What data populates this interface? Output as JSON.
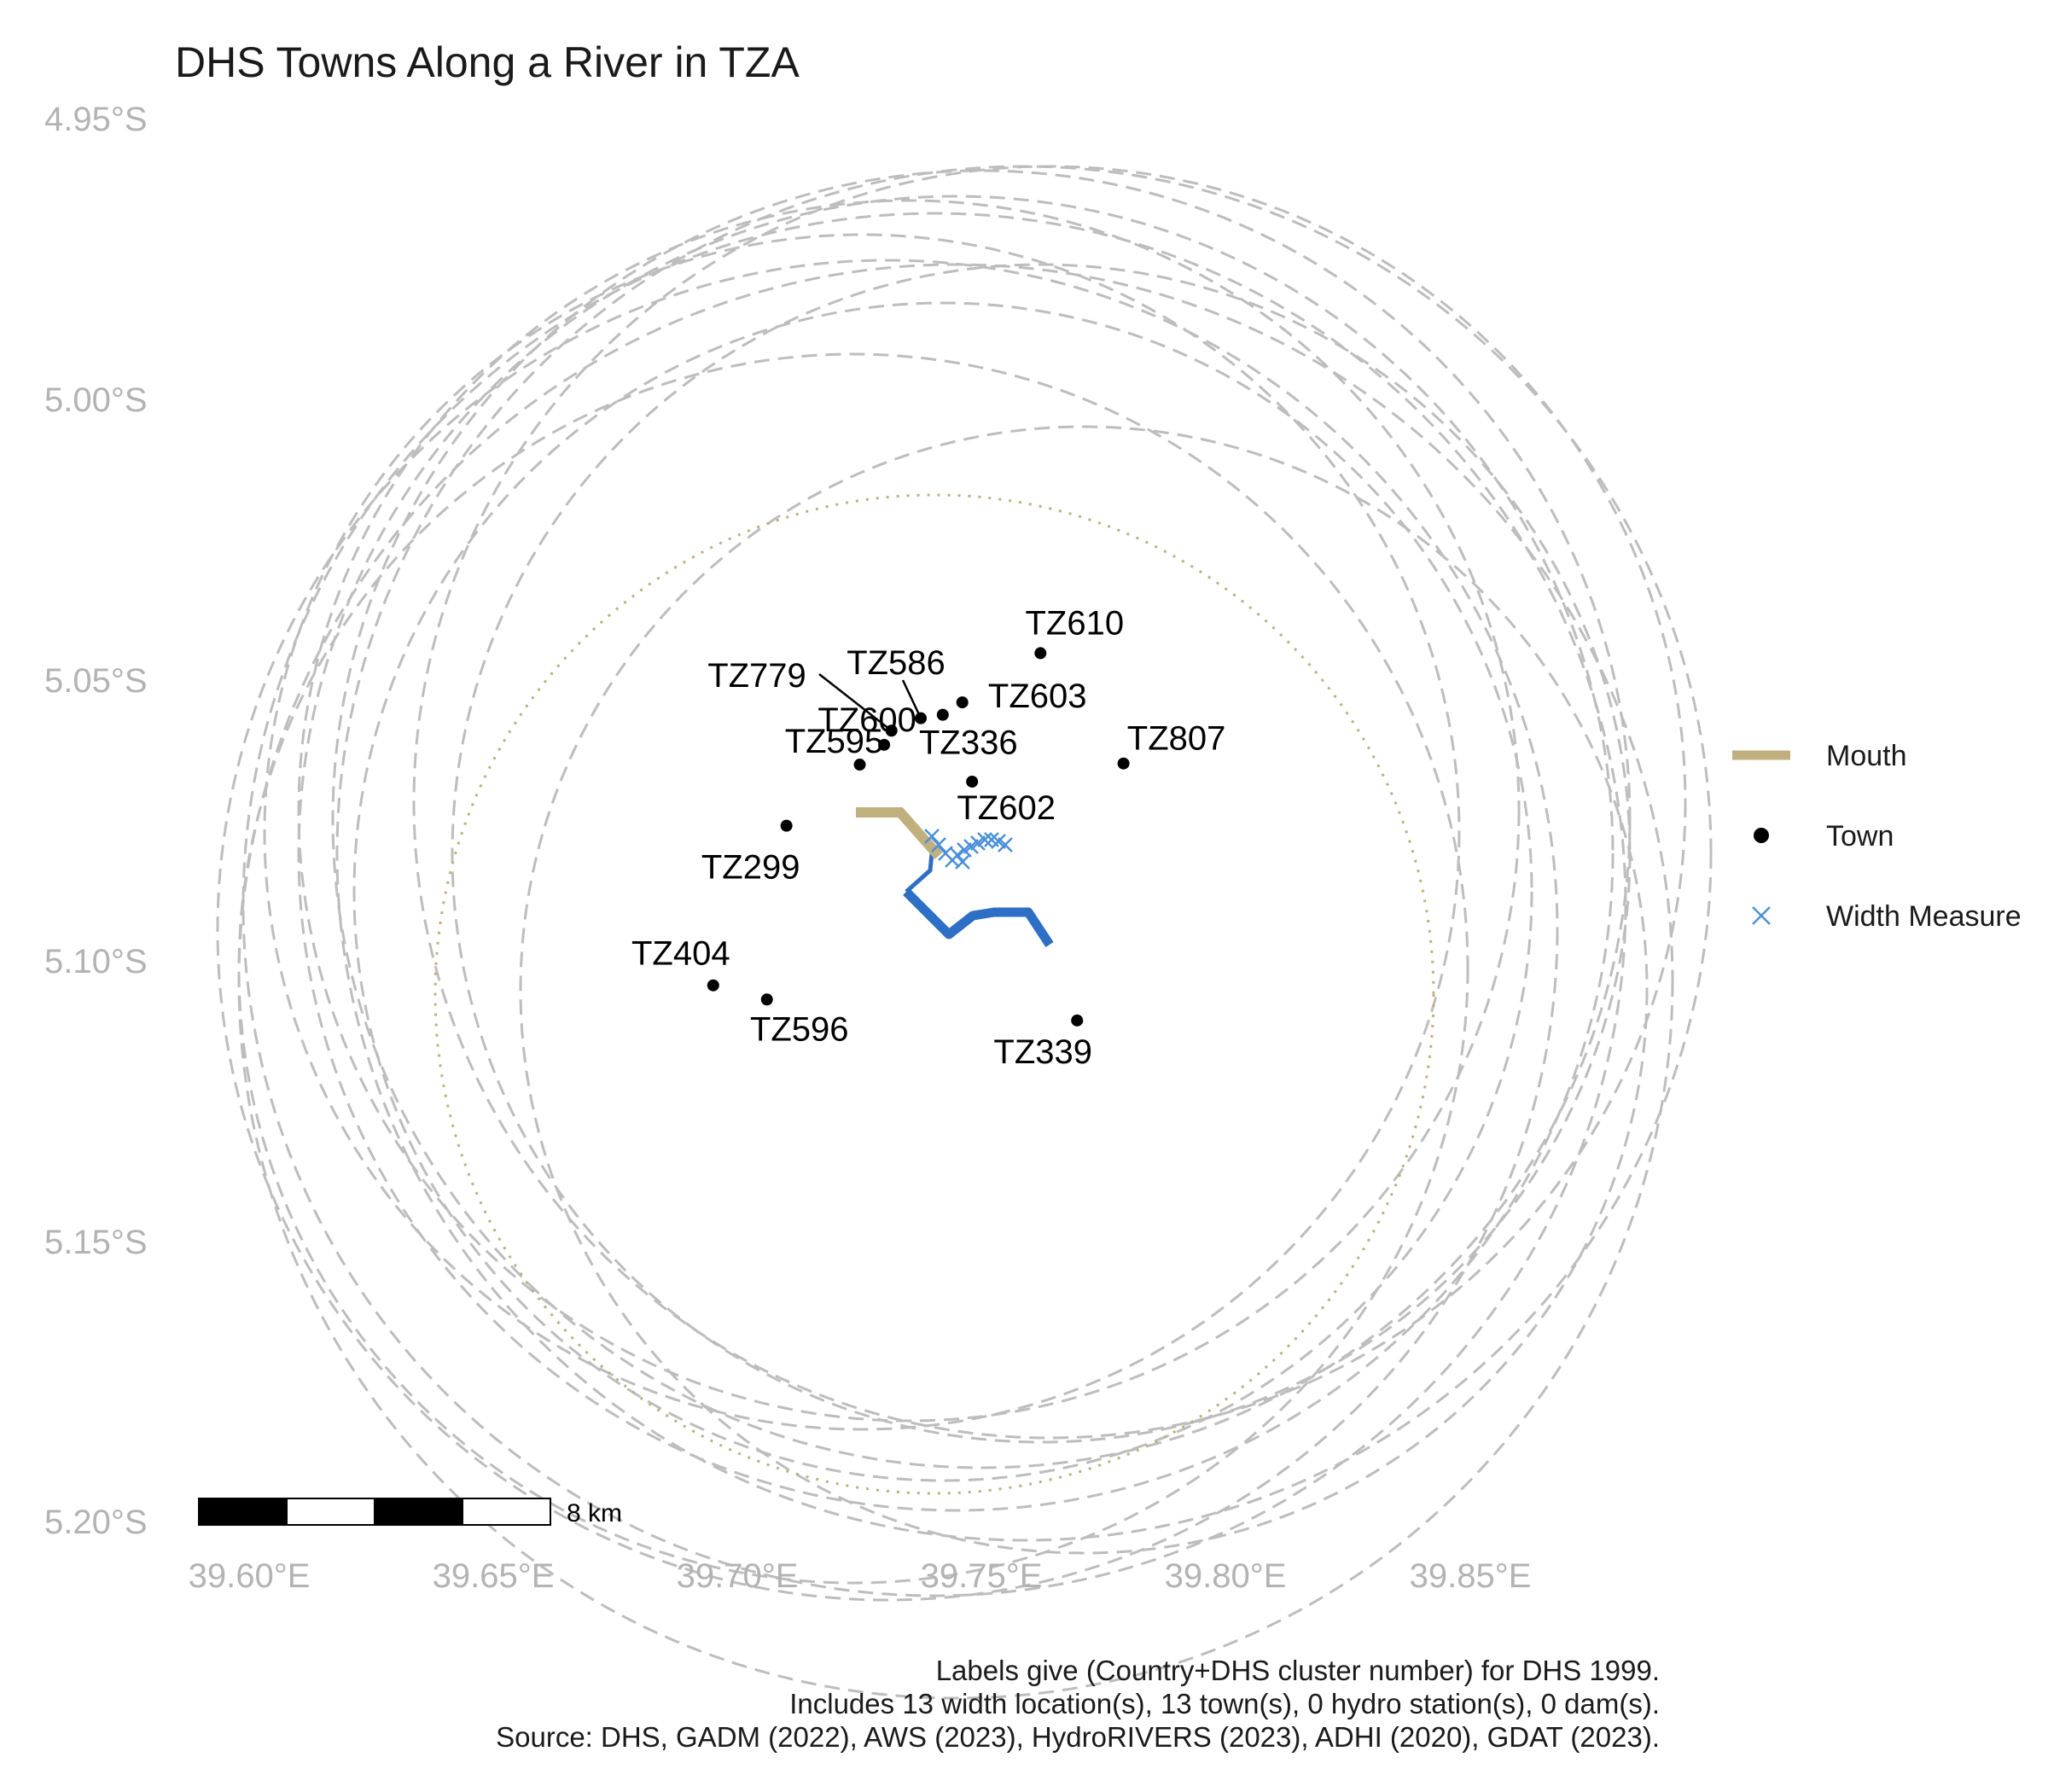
{
  "title": "DHS Towns Along a River in TZA",
  "axes": {
    "y_ticks": [
      "4.95°S",
      "5.00°S",
      "5.05°S",
      "5.10°S",
      "5.15°S",
      "5.20°S"
    ],
    "x_ticks": [
      "39.60°E",
      "39.65°E",
      "39.70°E",
      "39.75°E",
      "39.80°E",
      "39.85°E"
    ]
  },
  "legend": {
    "items": [
      {
        "label": "Mouth",
        "color": "#bfb07e",
        "symbol": "line"
      },
      {
        "label": "Town",
        "color": "#000000",
        "symbol": "dot"
      },
      {
        "label": "Width Measure",
        "color": "#4a90d9",
        "symbol": "cross"
      }
    ]
  },
  "scale_bar": {
    "label": "8 km"
  },
  "caption": [
    "Labels give (Country+DHS cluster number) for DHS 1999.",
    "Includes 13 width location(s), 13 town(s), 0 hydro station(s), 0 dam(s).",
    "Source: DHS, GADM (2022), AWS (2023), HydroRIVERS (2023), ADHI (2020), GDAT (2023)."
  ],
  "colors": {
    "river": "#2d6fc4",
    "mouth": "#bfb07e",
    "width_measure": "#4a90d9",
    "buffer_circle": "#bdbdbd",
    "town": "#000000"
  },
  "towns": [
    {
      "label": "TZ610",
      "lon": 39.762,
      "lat": -5.0443
    },
    {
      "label": "TZ779",
      "lon": 39.7315,
      "lat": -5.058
    },
    {
      "label": "TZ586",
      "lon": 39.7375,
      "lat": -5.0558
    },
    {
      "label": "TZ603",
      "lon": 39.746,
      "lat": -5.053
    },
    {
      "label": "TZ336",
      "lon": 39.742,
      "lat": -5.0552
    },
    {
      "label": "TZ600",
      "lon": 39.73,
      "lat": -5.0605
    },
    {
      "label": "TZ807",
      "lon": 39.779,
      "lat": -5.0638
    },
    {
      "label": "TZ595",
      "lon": 39.725,
      "lat": -5.064
    },
    {
      "label": "TZ602",
      "lon": 39.748,
      "lat": -5.067
    },
    {
      "label": "TZ299",
      "lon": 39.71,
      "lat": -5.0748
    },
    {
      "label": "TZ404",
      "lon": 39.695,
      "lat": -5.103
    },
    {
      "label": "TZ596",
      "lon": 39.706,
      "lat": -5.1055
    },
    {
      "label": "TZ339",
      "lon": 39.7695,
      "lat": -5.1092
    }
  ]
}
